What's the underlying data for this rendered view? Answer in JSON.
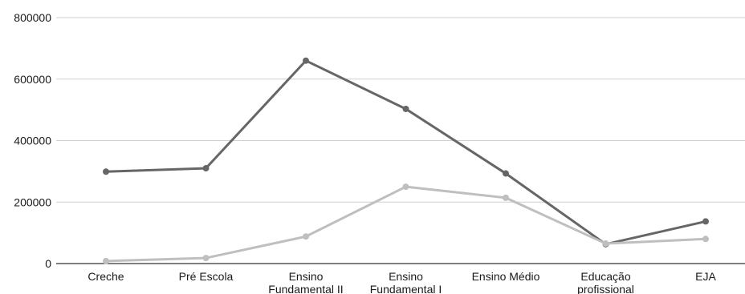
{
  "chart_data": {
    "type": "line",
    "categories": [
      [
        "Creche"
      ],
      [
        "Pré Escola"
      ],
      [
        "Ensino",
        "Fundamental II"
      ],
      [
        "Ensino",
        "Fundamental I"
      ],
      [
        "Ensino Médio"
      ],
      [
        "Educação",
        "profissional"
      ],
      [
        "EJA"
      ]
    ],
    "series": [
      {
        "values": [
          299000,
          310000,
          660000,
          503000,
          293000,
          63000,
          137000
        ],
        "color": "#666666"
      },
      {
        "values": [
          8000,
          18000,
          88000,
          250000,
          214000,
          65000,
          80000
        ],
        "color": "#bfbfbf"
      }
    ],
    "ylim": [
      0,
      800000
    ],
    "yticks": [
      "0",
      "200000",
      "400000",
      "600000",
      "800000"
    ],
    "grid": true,
    "legend": "none",
    "title": "",
    "xlabel": "",
    "ylabel": ""
  }
}
